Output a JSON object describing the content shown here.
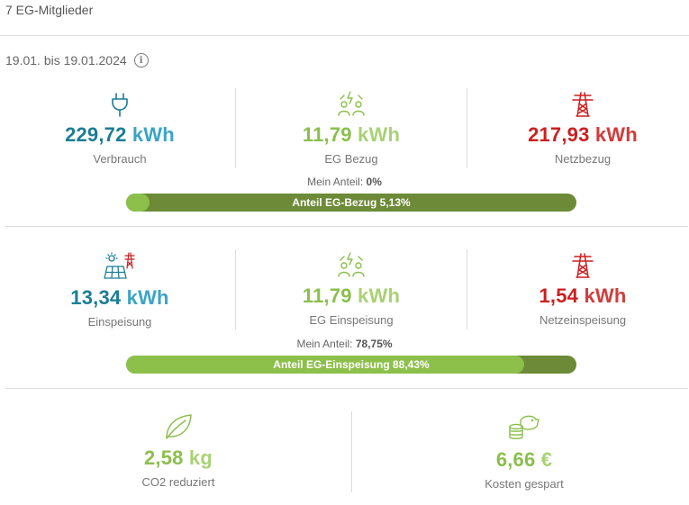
{
  "header": {
    "members": "7 EG-Mitglieder"
  },
  "period": {
    "range": "19.01. bis 19.01.2024",
    "info_icon": "info-icon"
  },
  "consumption": {
    "verbrauch": {
      "number": "229,72",
      "unit": "kWh",
      "label": "Verbrauch",
      "icon": "plug-icon",
      "color": "#1c7d96"
    },
    "eg_bezug": {
      "number": "11,79",
      "unit": "kWh",
      "label": "EG Bezug",
      "icon": "community-energy-icon",
      "color": "#8bbf4d"
    },
    "netzbezug": {
      "number": "217,93",
      "unit": "kWh",
      "label": "Netzbezug",
      "icon": "power-pylon-icon",
      "color": "#cc1f1f"
    },
    "my_share_label": "Mein Anteil:",
    "my_share_value": "0%",
    "bar_label": "Anteil EG-Bezug 5,13%",
    "bar_fraction": 0.0513
  },
  "feed_in": {
    "einspeisung": {
      "number": "13,34",
      "unit": "kWh",
      "label": "Einspeisung",
      "icon": "solar-pylon-icon",
      "color": "#1c7d96"
    },
    "eg_einspeisung": {
      "number": "11,79",
      "unit": "kWh",
      "label": "EG Einspeisung",
      "icon": "community-energy-icon",
      "color": "#8bbf4d"
    },
    "netzeinspeisung": {
      "number": "1,54",
      "unit": "kWh",
      "label": "Netzeinspeisung",
      "icon": "power-pylon-icon",
      "color": "#cc1f1f"
    },
    "my_share_label": "Mein Anteil:",
    "my_share_value": "78,75%",
    "bar_label": "Anteil EG-Einspeisung 88,43%",
    "bar_fraction": 0.8843
  },
  "savings": {
    "co2": {
      "number": "2,58",
      "unit": "kg",
      "label": "CO2 reduziert",
      "icon": "leaf-icon"
    },
    "kosten": {
      "number": "6,66",
      "unit": "€",
      "label": "Kosten gespart",
      "icon": "piggy-bank-coins-icon"
    }
  },
  "colors": {
    "bar_bg": "#6c8a37",
    "bar_fill": "#8cc04b",
    "brand_green": "#8bbf4d"
  }
}
